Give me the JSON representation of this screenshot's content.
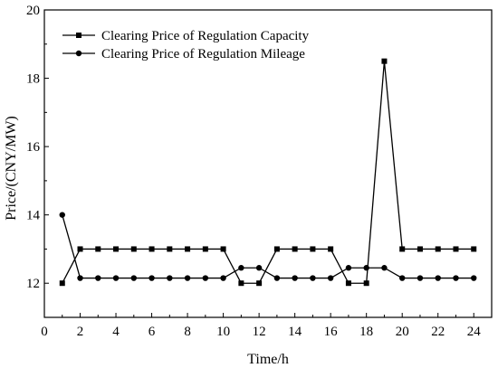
{
  "chart_data": {
    "type": "line",
    "title": "",
    "xlabel": "Time/h",
    "ylabel": "Price/(CNY/MW)",
    "xlim": [
      0,
      25
    ],
    "ylim": [
      11,
      20
    ],
    "xticks": [
      0,
      2,
      4,
      6,
      8,
      10,
      12,
      14,
      16,
      18,
      20,
      22,
      24
    ],
    "yticks": [
      12,
      14,
      16,
      18,
      20
    ],
    "grid": false,
    "legend_position": "top-left",
    "x": [
      1,
      2,
      3,
      4,
      5,
      6,
      7,
      8,
      9,
      10,
      11,
      12,
      13,
      14,
      15,
      16,
      17,
      18,
      19,
      20,
      21,
      22,
      23,
      24
    ],
    "series": [
      {
        "name": "Clearing Price of Regulation Capacity",
        "marker": "square",
        "color": "#000000",
        "values": [
          12.0,
          13.0,
          13.0,
          13.0,
          13.0,
          13.0,
          13.0,
          13.0,
          13.0,
          13.0,
          12.0,
          12.0,
          13.0,
          13.0,
          13.0,
          13.0,
          12.0,
          12.0,
          18.5,
          13.0,
          13.0,
          13.0,
          13.0,
          13.0
        ]
      },
      {
        "name": "Clearing Price of Regulation Mileage",
        "marker": "circle",
        "color": "#000000",
        "values": [
          14.0,
          12.15,
          12.15,
          12.15,
          12.15,
          12.15,
          12.15,
          12.15,
          12.15,
          12.15,
          12.45,
          12.45,
          12.15,
          12.15,
          12.15,
          12.15,
          12.45,
          12.45,
          12.45,
          12.15,
          12.15,
          12.15,
          12.15,
          12.15
        ]
      }
    ]
  }
}
